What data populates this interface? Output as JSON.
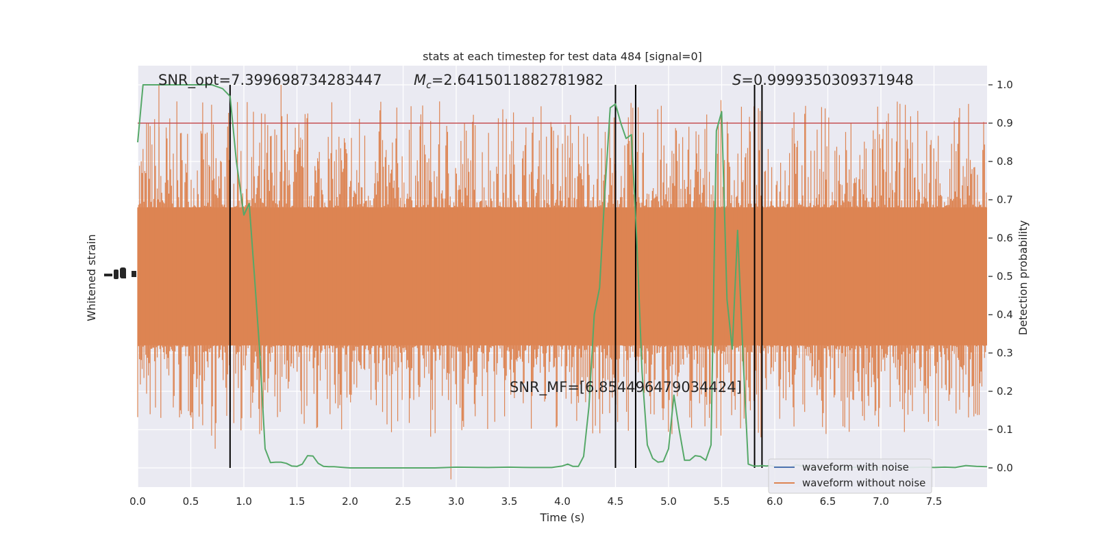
{
  "chart_data": {
    "type": "line",
    "title": "stats at each timestep for test data 484 [signal=0]",
    "xlabel": "Time (s)",
    "ylabel_left": "Whitened strain",
    "ylabel_right": "Detection probability",
    "xlim": [
      0,
      8
    ],
    "ylim_right": [
      -0.05,
      1.05
    ],
    "x_ticks": [
      "0.0",
      "0.5",
      "1.0",
      "1.5",
      "2.0",
      "2.5",
      "3.0",
      "3.5",
      "4.0",
      "4.5",
      "5.0",
      "5.5",
      "6.0",
      "6.5",
      "7.0",
      "7.5"
    ],
    "x_tick_values": [
      0,
      0.5,
      1,
      1.5,
      2,
      2.5,
      3,
      3.5,
      4,
      4.5,
      5,
      5.5,
      6,
      6.5,
      7,
      7.5
    ],
    "y_right_ticks": [
      "0.0",
      "0.1",
      "0.2",
      "0.3",
      "0.4",
      "0.5",
      "0.6",
      "0.7",
      "0.8",
      "0.9",
      "1.0"
    ],
    "y_right_tick_values": [
      0,
      0.1,
      0.2,
      0.3,
      0.4,
      0.5,
      0.6,
      0.7,
      0.8,
      0.9,
      1.0
    ],
    "grid": true,
    "threshold": 0.9,
    "vlines": [
      0.87,
      4.5,
      4.69,
      5.81,
      5.88
    ],
    "annotations": {
      "snr_opt": "SNR_opt=7.399698734283447",
      "mc_symbol": "M",
      "mc_sub": "c",
      "mc_value": "=2.6415011882781982",
      "s_symbol": "S",
      "s_value": "=0.9999350309371948",
      "snr_mf": "SNR_MF=[6.854496479034424]"
    },
    "legend": {
      "placement": "lower-right",
      "entries": [
        "waveform with noise",
        "waveform without noise"
      ]
    },
    "series": [
      {
        "name": "waveform with noise",
        "color": "#4c72b0",
        "values": []
      },
      {
        "name": "waveform without noise",
        "color": "#dd8452",
        "values": []
      },
      {
        "color": "#55a868",
        "x": [
          0,
          0.05,
          0.1,
          0.2,
          0.3,
          0.4,
          0.5,
          0.6,
          0.7,
          0.8,
          0.87,
          0.93,
          1.0,
          1.05,
          1.1,
          1.15,
          1.2,
          1.25,
          1.3,
          1.35,
          1.4,
          1.45,
          1.5,
          1.55,
          1.6,
          1.65,
          1.7,
          1.75,
          1.8,
          1.85,
          1.9,
          2.0,
          2.2,
          2.5,
          2.8,
          3.0,
          3.3,
          3.5,
          3.7,
          3.9,
          4.0,
          4.05,
          4.1,
          4.15,
          4.2,
          4.25,
          4.3,
          4.35,
          4.4,
          4.45,
          4.5,
          4.55,
          4.6,
          4.65,
          4.7,
          4.75,
          4.8,
          4.85,
          4.9,
          4.95,
          5.0,
          5.05,
          5.1,
          5.15,
          5.2,
          5.25,
          5.3,
          5.35,
          5.4,
          5.45,
          5.5,
          5.55,
          5.6,
          5.65,
          5.7,
          5.75,
          5.8,
          5.85,
          5.88,
          5.92,
          5.96,
          6.0,
          6.05,
          6.1,
          6.15,
          6.2,
          6.3,
          6.4,
          6.5,
          6.6,
          6.7,
          6.8,
          6.9,
          7.0,
          7.1,
          7.2,
          7.3,
          7.4,
          7.5,
          7.6,
          7.7,
          7.8,
          7.9,
          8.0
        ],
        "values": [
          0.85,
          1.0,
          1.0,
          1.0,
          1.0,
          1.0,
          1.0,
          1.0,
          1.0,
          0.99,
          0.97,
          0.8,
          0.66,
          0.69,
          0.5,
          0.3,
          0.05,
          0.014,
          0.015,
          0.015,
          0.012,
          0.005,
          0.004,
          0.01,
          0.032,
          0.031,
          0.012,
          0.004,
          0.003,
          0.003,
          0.002,
          0.0,
          0.0,
          0.0,
          0.0,
          0.002,
          0.001,
          0.002,
          0.001,
          0.001,
          0.005,
          0.01,
          0.004,
          0.004,
          0.03,
          0.16,
          0.4,
          0.47,
          0.72,
          0.94,
          0.95,
          0.9,
          0.86,
          0.87,
          0.6,
          0.25,
          0.06,
          0.025,
          0.015,
          0.017,
          0.05,
          0.19,
          0.1,
          0.02,
          0.02,
          0.032,
          0.03,
          0.02,
          0.06,
          0.88,
          0.93,
          0.44,
          0.31,
          0.62,
          0.3,
          0.01,
          0.005,
          0.005,
          0.006,
          0.005,
          0.006,
          0.004,
          0.003,
          0.003,
          0.002,
          0.008,
          0.003,
          0.002,
          0.002,
          0.001,
          0.001,
          0.002,
          0.001,
          0.001,
          0.002,
          0.001,
          0.001,
          0.002,
          0.001,
          0.002,
          0.001,
          0.006,
          0.004,
          0.003
        ]
      }
    ]
  }
}
